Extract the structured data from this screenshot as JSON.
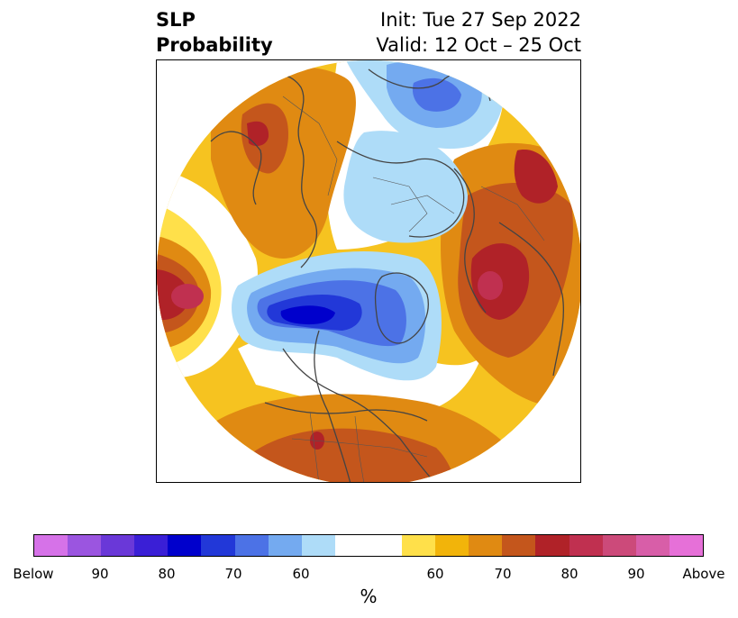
{
  "title": {
    "left_line1": "SLP",
    "left_line2": "Probability",
    "right_line1": "Init: Tue 27 Sep 2022",
    "right_line2": "Valid: 12 Oct – 25 Oct"
  },
  "colorbar": {
    "colors": [
      "#d672e8",
      "#9b55e0",
      "#6a38d8",
      "#3a1fd6",
      "#0000cc",
      "#2238d8",
      "#4c72e6",
      "#74aaf0",
      "#aedcf8",
      "#ffffff",
      "#ffe04a",
      "#f2b40a",
      "#e08a12",
      "#c4561c",
      "#b02228",
      "#c03050",
      "#cc4a7a",
      "#d85ea8",
      "#e670d8"
    ],
    "ticks": [
      {
        "label": "Below"
      },
      {
        "label": "90"
      },
      {
        "label": "80"
      },
      {
        "label": "70"
      },
      {
        "label": "60"
      },
      {
        "label": "60"
      },
      {
        "label": "70"
      },
      {
        "label": "80"
      },
      {
        "label": "90"
      },
      {
        "label": "Above"
      }
    ],
    "unit": "%"
  }
}
